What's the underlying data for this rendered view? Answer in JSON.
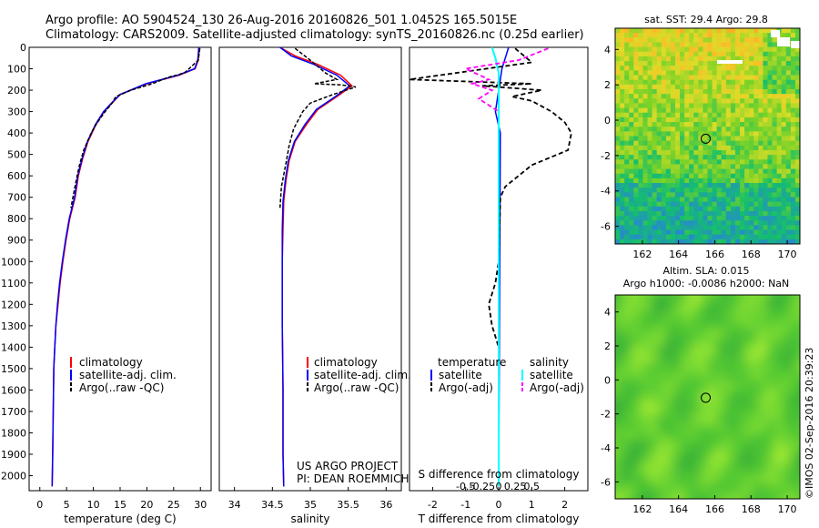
{
  "header": {
    "line1": "Argo profile: AO 5904524_130 26-Aug-2016 20160826_501 1.0452S 165.5015E",
    "line2": "Climatology: CARS2009. Satellite-adjusted climatology: synTS_20160826.nc (0.25d earlier)"
  },
  "credits": {
    "project": "US ARGO PROJECT",
    "pi": "PI: DEAN ROEMMICH",
    "imos": "©IMOS 02-Sep-2016 20:39:23"
  },
  "colors": {
    "climatology": "#ff0000",
    "satellite": "#0000ff",
    "argo": "#000000",
    "satellite_s": "#00ffff",
    "argo_s": "#ff00ff"
  },
  "chart_data": [
    {
      "id": "temperature",
      "type": "line",
      "xlabel": "temperature (deg C)",
      "ylabel": "",
      "xlim": [
        -2,
        32
      ],
      "ylim": [
        2070,
        0
      ],
      "xticks": [
        0,
        5,
        10,
        15,
        20,
        25,
        30
      ],
      "yticks": [
        0,
        100,
        200,
        300,
        400,
        500,
        600,
        700,
        800,
        900,
        1000,
        1100,
        1200,
        1300,
        1400,
        1500,
        1600,
        1700,
        1800,
        1900,
        2000
      ],
      "legend": [
        "climatology",
        "satellite-adj. clim.",
        "Argo(..raw -QC)"
      ],
      "series": [
        {
          "name": "climatology",
          "x": [
            29.8,
            29.6,
            29,
            26,
            20,
            15,
            13.5,
            12,
            10.5,
            9,
            8,
            7.2,
            6.6,
            5.6,
            4.9,
            4.3,
            3.8,
            3.4,
            3.0,
            2.8,
            2.6,
            2.5,
            2.4,
            2.3
          ],
          "y": [
            0,
            60,
            100,
            130,
            170,
            220,
            260,
            300,
            360,
            440,
            520,
            600,
            700,
            800,
            900,
            1000,
            1100,
            1200,
            1300,
            1400,
            1500,
            1700,
            1900,
            2050
          ]
        },
        {
          "name": "satellite-adj. clim.",
          "x": [
            29.7,
            29.5,
            28.9,
            25.8,
            19.8,
            15,
            13.4,
            11.9,
            10.4,
            8.9,
            7.9,
            7.1,
            6.5,
            5.5,
            4.8,
            4.2,
            3.7,
            3.3,
            3.0,
            2.8,
            2.6,
            2.5,
            2.4,
            2.3
          ],
          "y": [
            0,
            60,
            100,
            130,
            170,
            220,
            260,
            300,
            360,
            440,
            520,
            600,
            700,
            800,
            900,
            1000,
            1100,
            1200,
            1300,
            1400,
            1500,
            1700,
            1900,
            2050
          ]
        },
        {
          "name": "Argo(..raw -QC)",
          "x": [
            29.9,
            29.6,
            27,
            24,
            21,
            17,
            14.2,
            13.5,
            12.2,
            10.5,
            9.6,
            8.2,
            7.4,
            6.8,
            6.2,
            5.8
          ],
          "y": [
            5,
            60,
            120,
            140,
            170,
            200,
            230,
            260,
            300,
            360,
            400,
            480,
            550,
            620,
            700,
            750
          ]
        }
      ]
    },
    {
      "id": "salinity",
      "type": "line",
      "xlabel": "salinity",
      "ylabel": "",
      "xlim": [
        33.8,
        36.2
      ],
      "ylim": [
        2070,
        0
      ],
      "xticks": [
        34,
        34.5,
        35,
        35.5,
        36
      ],
      "legend": [
        "climatology",
        "satellite-adj. clim.",
        "Argo(..raw -QC)"
      ],
      "series": [
        {
          "name": "climatology",
          "x": [
            34.6,
            34.8,
            35.1,
            35.4,
            35.55,
            35.35,
            35.1,
            34.95,
            34.8,
            34.72,
            34.68,
            34.65,
            34.64,
            34.63,
            34.63,
            34.64,
            34.64,
            34.65
          ],
          "y": [
            0,
            40,
            80,
            130,
            180,
            230,
            290,
            360,
            440,
            530,
            620,
            720,
            850,
            1000,
            1300,
            1600,
            1900,
            2050
          ]
        },
        {
          "name": "satellite-adj. clim.",
          "x": [
            34.6,
            34.75,
            35.05,
            35.35,
            35.52,
            35.33,
            35.08,
            34.93,
            34.79,
            34.71,
            34.67,
            34.64,
            34.63,
            34.63,
            34.63,
            34.64,
            34.64,
            34.65
          ],
          "y": [
            0,
            40,
            80,
            130,
            180,
            230,
            290,
            360,
            440,
            530,
            620,
            720,
            850,
            1000,
            1300,
            1600,
            1900,
            2050
          ]
        },
        {
          "name": "Argo(..raw -QC)",
          "x": [
            34.8,
            35.0,
            35.2,
            35.35,
            35.05,
            35.4,
            35.5,
            35.6,
            35.3,
            35.0,
            34.9,
            34.78,
            34.72,
            34.68,
            34.62,
            34.6
          ],
          "y": [
            5,
            60,
            120,
            150,
            170,
            175,
            180,
            185,
            220,
            260,
            300,
            380,
            460,
            540,
            650,
            750
          ]
        }
      ]
    },
    {
      "id": "difference",
      "type": "line",
      "xlabel": "T difference from climatology",
      "x2label": "S difference from climatology",
      "xlim": [
        -2.7,
        2.7
      ],
      "ylim": [
        2070,
        0
      ],
      "xticks": [
        -2,
        -1,
        0,
        1,
        2
      ],
      "x2ticks": [
        -0.5,
        -0.25,
        0,
        0.25,
        0.5
      ],
      "legend_headers": [
        "temperature",
        "salinity"
      ],
      "legend": [
        "satellite",
        "Argo(-adj)",
        "satellite",
        "Argo(-adj)"
      ],
      "series": [
        {
          "name": "satellite",
          "x": [
            0.3,
            0.1,
            0.0,
            -0.1,
            0.05,
            0.0
          ],
          "y": [
            0,
            100,
            200,
            300,
            400,
            2050
          ]
        },
        {
          "name": "Argo(-adj)",
          "x": [
            0.5,
            1.0,
            -2.7,
            1.0,
            -0.5,
            1.3,
            0.4,
            1.0,
            1.6,
            2.0,
            2.2,
            2.1,
            1.0,
            0.6,
            0.2,
            0.05,
            0.0,
            -0.1,
            -0.3,
            -0.2,
            0.0
          ],
          "y": [
            5,
            70,
            150,
            170,
            180,
            200,
            230,
            250,
            300,
            350,
            400,
            480,
            550,
            600,
            650,
            700,
            1000,
            1100,
            1200,
            1300,
            1400
          ]
        },
        {
          "name": "satellite",
          "x": [
            -0.2,
            -0.1,
            0.0,
            0.0,
            0.0
          ],
          "y": [
            0,
            50,
            120,
            300,
            2050
          ]
        },
        {
          "name": "Argo(-adj)",
          "x": [
            1.5,
            0.6,
            -1.0,
            -0.3,
            -0.8,
            -0.2,
            -0.6,
            0.0
          ],
          "y": [
            5,
            60,
            100,
            150,
            170,
            200,
            240,
            300
          ]
        }
      ]
    },
    {
      "id": "sst-map",
      "type": "heatmap",
      "title": "sat. SST: 29.4 Argo: 29.8",
      "xlim": [
        160.5,
        170.7
      ],
      "ylim": [
        -7,
        5.2
      ],
      "xticks": [
        162,
        164,
        166,
        168,
        170
      ],
      "yticks": [
        4,
        2,
        0,
        -2,
        -4,
        -6
      ],
      "marker": {
        "x": 165.5,
        "y": -1.05
      }
    },
    {
      "id": "sla-map",
      "type": "heatmap",
      "title": "Altim. SLA: 0.015",
      "subtitle": "Argo h1000: -0.0086 h2000: NaN",
      "xlim": [
        160.5,
        170.7
      ],
      "ylim": [
        -7,
        5
      ],
      "xticks": [
        162,
        164,
        166,
        168,
        170
      ],
      "yticks": [
        4,
        2,
        0,
        -2,
        -4,
        -6
      ],
      "marker": {
        "x": 165.5,
        "y": -1.05
      }
    }
  ]
}
